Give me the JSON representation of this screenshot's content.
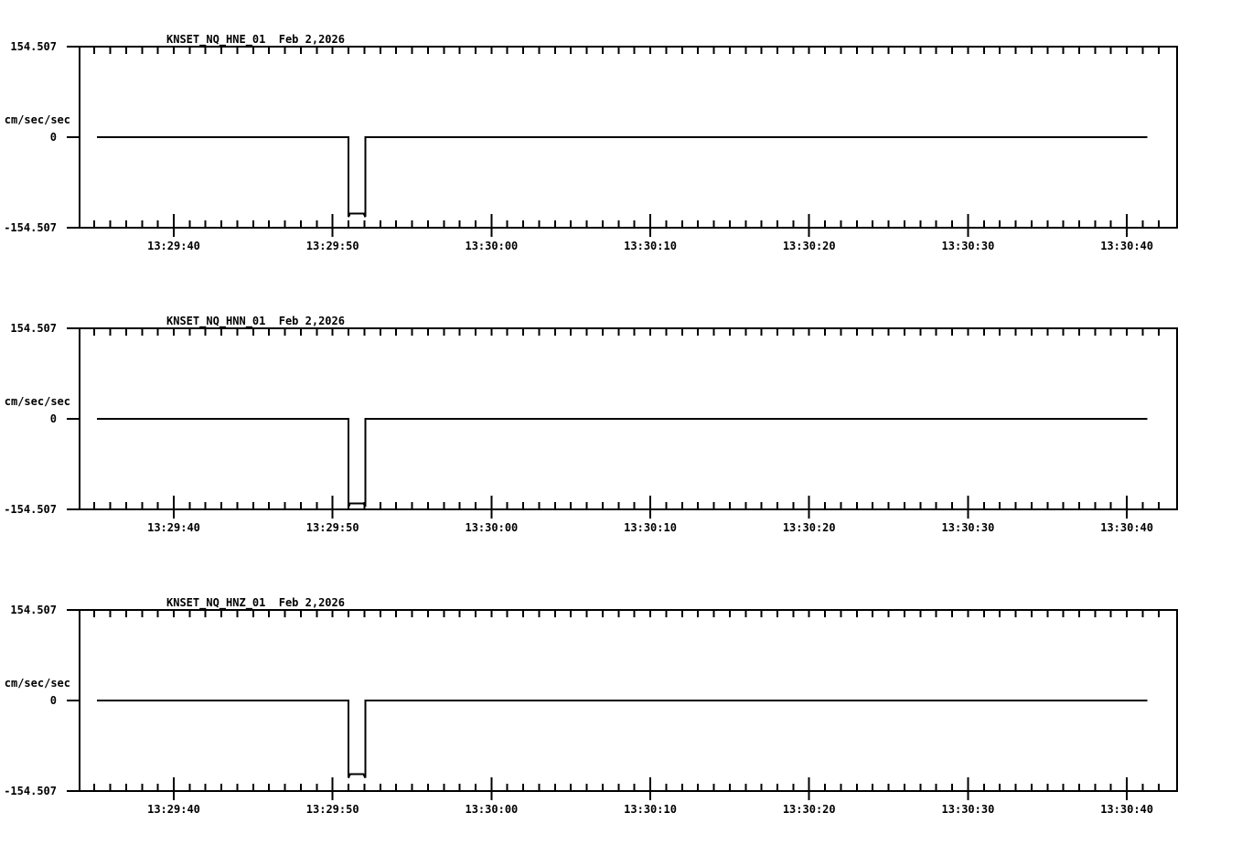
{
  "page": {
    "background_color": "#ffffff",
    "foreground_color": "#000000",
    "description": "Three stacked seismic acceleration waveform panels"
  },
  "chart_data": [
    {
      "type": "line",
      "id": "hne",
      "station": "KNSET_NQ_HNE_01",
      "date": "Feb 2,2026",
      "ylabel": "cm/sec/sec",
      "ylim": [
        -154.507,
        154.507
      ],
      "yticks": [
        {
          "value": 154.507,
          "label": "154.507"
        },
        {
          "value": 0,
          "label": "0"
        },
        {
          "value": -154.507,
          "label": "-154.507"
        }
      ],
      "time_reference": "13:29:00",
      "x_domain_seconds": [
        34.07,
        103.16
      ],
      "x_minor_ticks_seconds": {
        "from": 35,
        "to": 102,
        "step": 1
      },
      "x_major_ticks": [
        {
          "t": 40,
          "label": "13:29:40"
        },
        {
          "t": 50,
          "label": "13:29:50"
        },
        {
          "t": 60,
          "label": "13:30:00"
        },
        {
          "t": 70,
          "label": "13:30:10"
        },
        {
          "t": 80,
          "label": "13:30:20"
        },
        {
          "t": 90,
          "label": "13:30:30"
        },
        {
          "t": 100,
          "label": "13:30:40"
        }
      ],
      "grid": false,
      "baseline_value": 0,
      "pulse": {
        "start_time": "13:29:51",
        "end_time": "13:29:52",
        "plateau_value": -130,
        "overshoot_value": -136
      },
      "trace_points": [
        [
          35.15,
          0
        ],
        [
          51.0,
          0
        ],
        [
          51.0,
          -136
        ],
        [
          51.1,
          -130
        ],
        [
          51.95,
          -130
        ],
        [
          52.05,
          -136
        ],
        [
          52.05,
          0
        ],
        [
          101.3,
          0
        ]
      ]
    },
    {
      "type": "line",
      "id": "hnn",
      "station": "KNSET_NQ_HNN_01",
      "date": "Feb 2,2026",
      "ylabel": "cm/sec/sec",
      "ylim": [
        -154.507,
        154.507
      ],
      "yticks": [
        {
          "value": 154.507,
          "label": "154.507"
        },
        {
          "value": 0,
          "label": "0"
        },
        {
          "value": -154.507,
          "label": "-154.507"
        }
      ],
      "time_reference": "13:29:00",
      "x_domain_seconds": [
        34.07,
        103.16
      ],
      "x_minor_ticks_seconds": {
        "from": 35,
        "to": 102,
        "step": 1
      },
      "x_major_ticks": [
        {
          "t": 40,
          "label": "13:29:40"
        },
        {
          "t": 50,
          "label": "13:29:50"
        },
        {
          "t": 60,
          "label": "13:30:00"
        },
        {
          "t": 70,
          "label": "13:30:10"
        },
        {
          "t": 80,
          "label": "13:30:20"
        },
        {
          "t": 90,
          "label": "13:30:30"
        },
        {
          "t": 100,
          "label": "13:30:40"
        }
      ],
      "grid": false,
      "baseline_value": 0,
      "pulse": {
        "start_time": "13:29:51",
        "end_time": "13:29:52",
        "plateau_value": -144,
        "overshoot_value": -150
      },
      "trace_points": [
        [
          35.15,
          0
        ],
        [
          51.0,
          0
        ],
        [
          51.0,
          -150
        ],
        [
          51.1,
          -144
        ],
        [
          51.95,
          -144
        ],
        [
          52.05,
          -150
        ],
        [
          52.05,
          0
        ],
        [
          101.3,
          0
        ]
      ]
    },
    {
      "type": "line",
      "id": "hnz",
      "station": "KNSET_NQ_HNZ_01",
      "date": "Feb 2,2026",
      "ylabel": "cm/sec/sec",
      "ylim": [
        -154.507,
        154.507
      ],
      "yticks": [
        {
          "value": 154.507,
          "label": "154.507"
        },
        {
          "value": 0,
          "label": "0"
        },
        {
          "value": -154.507,
          "label": "-154.507"
        }
      ],
      "time_reference": "13:29:00",
      "x_domain_seconds": [
        34.07,
        103.16
      ],
      "x_minor_ticks_seconds": {
        "from": 35,
        "to": 102,
        "step": 1
      },
      "x_major_ticks": [
        {
          "t": 40,
          "label": "13:29:40"
        },
        {
          "t": 50,
          "label": "13:29:50"
        },
        {
          "t": 60,
          "label": "13:30:00"
        },
        {
          "t": 70,
          "label": "13:30:10"
        },
        {
          "t": 80,
          "label": "13:30:20"
        },
        {
          "t": 90,
          "label": "13:30:30"
        },
        {
          "t": 100,
          "label": "13:30:40"
        }
      ],
      "grid": false,
      "baseline_value": 0,
      "pulse": {
        "start_time": "13:29:51",
        "end_time": "13:29:52",
        "plateau_value": -126,
        "overshoot_value": -132
      },
      "trace_points": [
        [
          35.15,
          0
        ],
        [
          51.0,
          0
        ],
        [
          51.0,
          -132
        ],
        [
          51.1,
          -126
        ],
        [
          51.95,
          -126
        ],
        [
          52.05,
          -132
        ],
        [
          52.05,
          0
        ],
        [
          101.3,
          0
        ]
      ]
    }
  ]
}
